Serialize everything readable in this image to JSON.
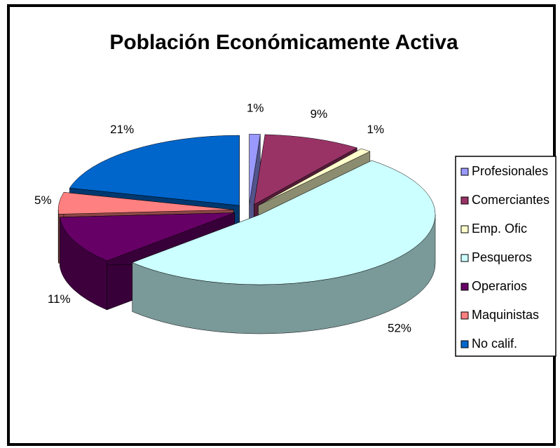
{
  "chart_data": {
    "type": "pie",
    "title": "Población Económicamente Activa",
    "categories": [
      "Profesionales",
      "Comerciantes",
      "Emp. Ofic",
      "Pesqueros",
      "Operarios",
      "Maquinistas",
      "No calif."
    ],
    "values": [
      1,
      9,
      1,
      52,
      11,
      5,
      21
    ],
    "value_labels": [
      "1%",
      "9%",
      "1%",
      "52%",
      "11%",
      "5%",
      "21%"
    ],
    "colors": [
      "#9999ff",
      "#993366",
      "#ffffcc",
      "#ccffff",
      "#660066",
      "#ff8080",
      "#0066cc"
    ],
    "legend": "right",
    "exploded": true,
    "three_d": true
  }
}
